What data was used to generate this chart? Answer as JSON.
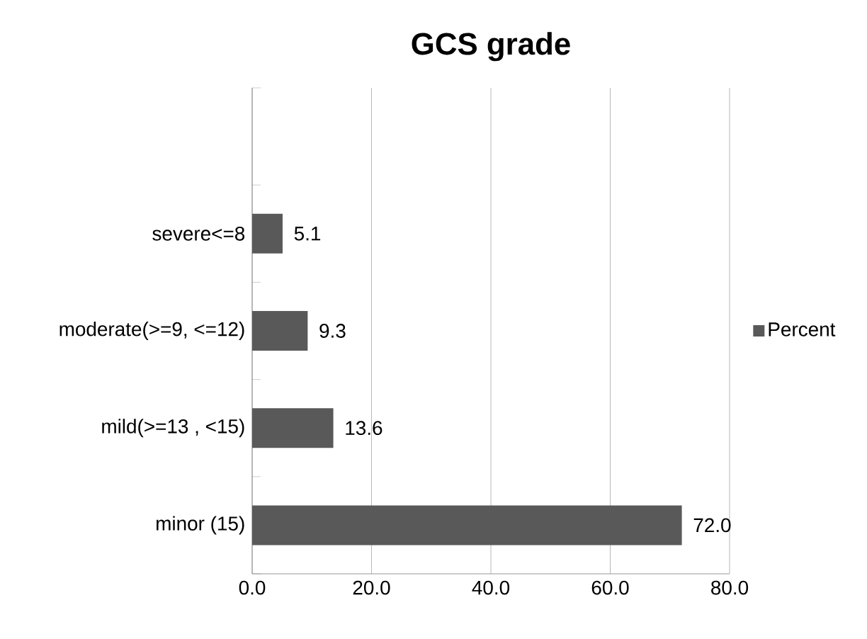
{
  "chart_data": {
    "type": "bar",
    "orientation": "horizontal",
    "title": "GCS grade",
    "categories": [
      null,
      "severe<=8",
      "moderate(>=9, <=12)",
      "mild(>=13 , <15)",
      "minor (15)"
    ],
    "series": [
      {
        "name": "Percent",
        "color": "#595959",
        "values": [
          null,
          5.1,
          9.3,
          13.6,
          72.0
        ]
      }
    ],
    "value_labels": [
      null,
      "5.1",
      "9.3",
      "13.6",
      "72.0"
    ],
    "xlim": [
      0,
      80
    ],
    "xticks": [
      {
        "value": 0,
        "label": "0.0"
      },
      {
        "value": 20,
        "label": "20.0"
      },
      {
        "value": 40,
        "label": "40.0"
      },
      {
        "value": 60,
        "label": "60.0"
      },
      {
        "value": 80,
        "label": "80.0"
      }
    ],
    "grid": "x",
    "legend": "right"
  }
}
